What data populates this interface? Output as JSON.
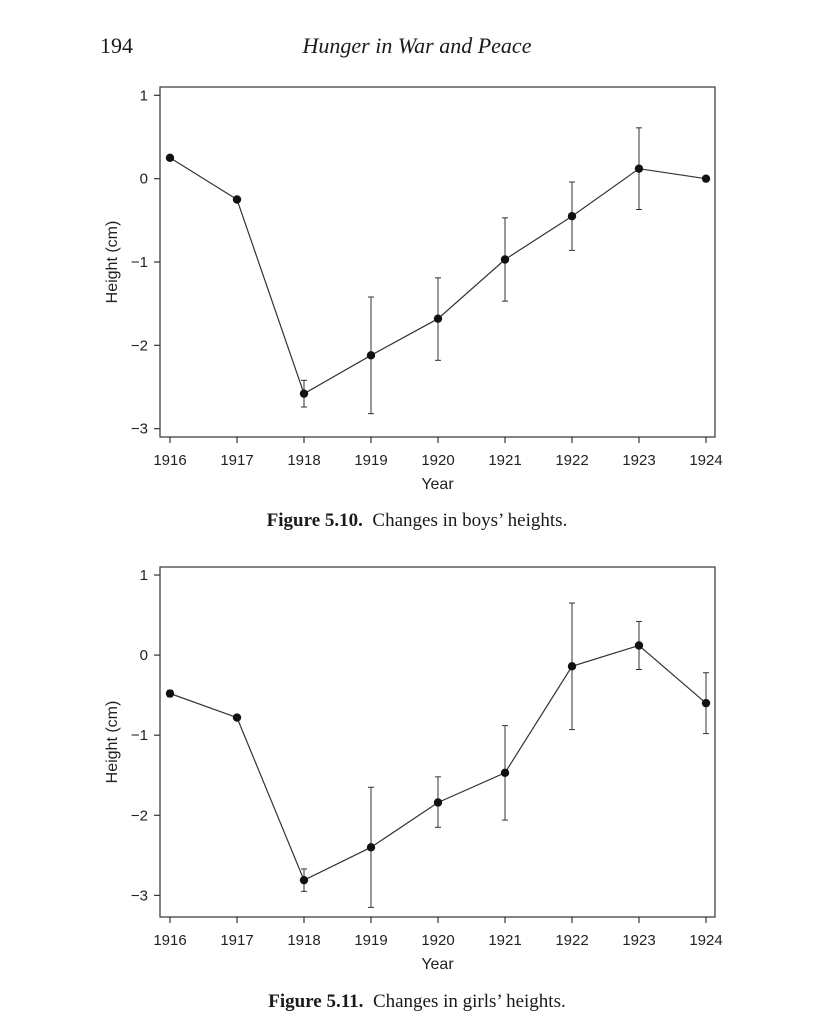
{
  "page": {
    "number": "194",
    "running_head": "Hunger in War and Peace"
  },
  "figures": [
    {
      "label": "Figure 5.10.",
      "title": "Changes in boys’ heights."
    },
    {
      "label": "Figure 5.11.",
      "title": "Changes in girls’ heights."
    }
  ],
  "chart_data": [
    {
      "type": "line",
      "title": "",
      "xlabel": "Year",
      "ylabel": "Height (cm)",
      "x": [
        1916,
        1917,
        1918,
        1919,
        1920,
        1921,
        1922,
        1923,
        1924
      ],
      "xlim": [
        1916,
        1924
      ],
      "ylim": [
        -3.1,
        1.1
      ],
      "xticks": [
        "1916",
        "1917",
        "1918",
        "1919",
        "1920",
        "1921",
        "1922",
        "1923",
        "1924"
      ],
      "yticks": [
        1,
        0,
        -1,
        -2,
        -3
      ],
      "ytick_labels": [
        "1",
        "0",
        "−1",
        "−2",
        "−3"
      ],
      "grid": false,
      "series": [
        {
          "values": [
            0.25,
            -0.25,
            -2.58,
            -2.12,
            -1.68,
            -0.97,
            -0.45,
            0.12,
            0.0
          ],
          "err_low": [
            null,
            null,
            -2.74,
            -2.82,
            -2.18,
            -1.47,
            -0.86,
            -0.37,
            null
          ],
          "err_high": [
            null,
            null,
            -2.42,
            -1.42,
            -1.19,
            -0.47,
            -0.04,
            0.61,
            null
          ]
        }
      ]
    },
    {
      "type": "line",
      "title": "",
      "xlabel": "Year",
      "ylabel": "Height (cm)",
      "x": [
        1916,
        1917,
        1918,
        1919,
        1920,
        1921,
        1922,
        1923,
        1924
      ],
      "xlim": [
        1916,
        1924
      ],
      "ylim": [
        -3.27,
        1.1
      ],
      "xticks": [
        "1916",
        "1917",
        "1918",
        "1919",
        "1920",
        "1921",
        "1922",
        "1923",
        "1924"
      ],
      "yticks": [
        1,
        0,
        -1,
        -2,
        -3
      ],
      "ytick_labels": [
        "1",
        "0",
        "−1",
        "−2",
        "−3"
      ],
      "grid": false,
      "series": [
        {
          "values": [
            -0.48,
            -0.78,
            -2.81,
            -2.4,
            -1.84,
            -1.47,
            -0.14,
            0.12,
            -0.6
          ],
          "err_low": [
            -0.52,
            null,
            -2.95,
            -3.15,
            -2.15,
            -2.06,
            -0.93,
            -0.18,
            -0.98
          ],
          "err_high": [
            -0.44,
            null,
            -2.67,
            -1.65,
            -1.52,
            -0.88,
            0.65,
            0.42,
            -0.22
          ]
        }
      ]
    }
  ]
}
